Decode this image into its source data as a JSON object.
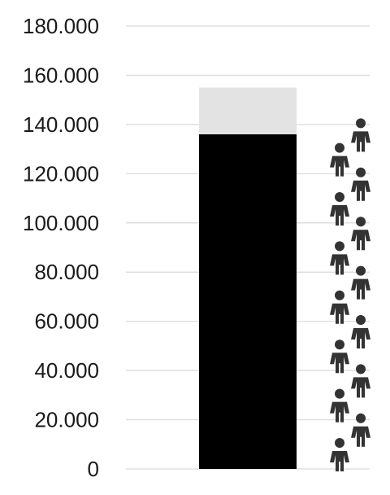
{
  "chart_data": {
    "type": "bar",
    "stacked": true,
    "categories": [
      ""
    ],
    "series": [
      {
        "values": [
          136000
        ],
        "color": "#000000"
      },
      {
        "values": [
          19000
        ],
        "color": "#e3e3e3"
      }
    ],
    "y_ticks": [
      "0",
      "20.000",
      "40.000",
      "60.000",
      "80.000",
      "100.000",
      "120.000",
      "140.000",
      "160.000",
      "180.000"
    ],
    "ylim": [
      0,
      180000
    ],
    "grid": true,
    "decoration": {
      "icon": "person-icon",
      "count": 14,
      "color": "#333333"
    }
  }
}
